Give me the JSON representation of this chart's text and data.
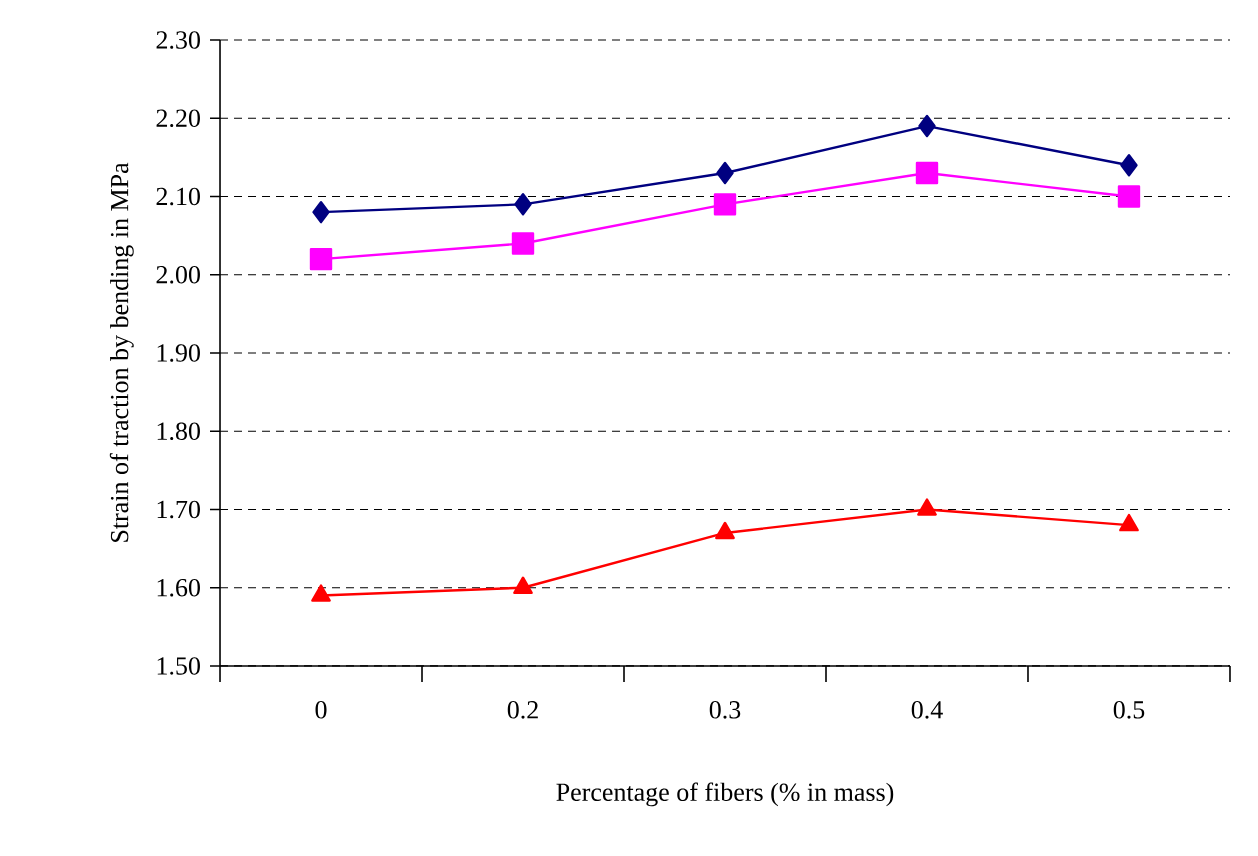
{
  "chart_data": {
    "type": "line",
    "xlabel": "Percentage of fibers (% in mass)",
    "ylabel": "Strain of traction by bending in MPa",
    "categories": [
      "0",
      "0.2",
      "0.3",
      "0.4",
      "0.5"
    ],
    "series": [
      {
        "color": "#000080",
        "marker": "diamond",
        "values": [
          2.08,
          2.09,
          2.13,
          2.19,
          2.14
        ]
      },
      {
        "color": "#ff00ff",
        "marker": "square",
        "values": [
          2.02,
          2.04,
          2.09,
          2.13,
          2.1
        ]
      },
      {
        "color": "#ff0000",
        "marker": "triangle",
        "values": [
          1.59,
          1.6,
          1.67,
          1.7,
          1.68
        ]
      }
    ],
    "ylim": [
      1.5,
      2.3
    ],
    "yticks": [
      {
        "value": 1.5,
        "label": "1.50"
      },
      {
        "value": 1.6,
        "label": "1.60"
      },
      {
        "value": 1.7,
        "label": "1.70"
      },
      {
        "value": 1.8,
        "label": "1.80"
      },
      {
        "value": 1.9,
        "label": "1.90"
      },
      {
        "value": 2.0,
        "label": "2.00"
      },
      {
        "value": 2.1,
        "label": "2.10"
      },
      {
        "value": 2.2,
        "label": "2.20"
      },
      {
        "value": 2.3,
        "label": "2.30"
      }
    ],
    "grid": "y",
    "line_style": "solid"
  }
}
